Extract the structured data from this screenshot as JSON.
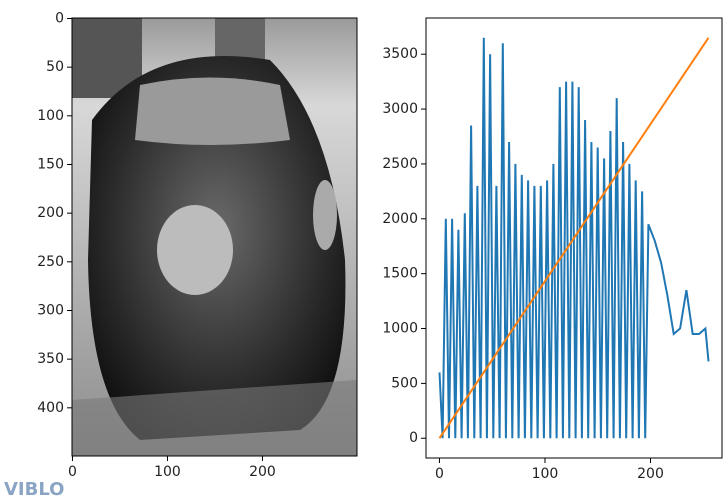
{
  "watermark": "VIBLO",
  "chart_data": [
    {
      "type": "image",
      "xlim": [
        -0.5,
        299.5
      ],
      "ylim": [
        449.5,
        -0.5
      ],
      "xticks": [
        0,
        100,
        200
      ],
      "yticks": [
        0,
        50,
        100,
        150,
        200,
        250,
        300,
        350,
        400
      ]
    },
    {
      "type": "line",
      "xlim": [
        -12.75,
        267.75
      ],
      "ylim": [
        -180,
        3830
      ],
      "xticks": [
        0,
        100,
        200
      ],
      "yticks": [
        0,
        500,
        1000,
        1500,
        2000,
        2500,
        3000,
        3500
      ],
      "series": [
        {
          "color": "#1f77b4",
          "x": [
            0,
            3,
            6,
            9,
            12,
            15,
            18,
            21,
            24,
            27,
            30,
            33,
            36,
            39,
            42,
            45,
            48,
            51,
            54,
            57,
            60,
            63,
            66,
            69,
            72,
            75,
            78,
            81,
            84,
            87,
            90,
            93,
            96,
            99,
            102,
            105,
            108,
            111,
            114,
            117,
            120,
            123,
            126,
            129,
            132,
            135,
            138,
            141,
            144,
            147,
            150,
            153,
            156,
            159,
            162,
            165,
            168,
            171,
            174,
            177,
            180,
            183,
            186,
            189,
            192,
            195,
            198,
            204,
            210,
            216,
            222,
            228,
            234,
            240,
            246,
            252,
            255
          ],
          "values": [
            600,
            0,
            2000,
            0,
            2000,
            0,
            1900,
            0,
            2050,
            0,
            2850,
            0,
            2300,
            0,
            3650,
            0,
            3500,
            0,
            2300,
            0,
            3600,
            0,
            2700,
            0,
            2500,
            0,
            2400,
            0,
            2350,
            0,
            2300,
            0,
            2300,
            0,
            2350,
            0,
            2500,
            0,
            3200,
            0,
            3250,
            0,
            3250,
            0,
            3200,
            0,
            2900,
            0,
            2700,
            0,
            2650,
            0,
            2550,
            0,
            2800,
            0,
            3100,
            0,
            2700,
            0,
            2500,
            0,
            2350,
            0,
            2250,
            0,
            1950,
            1800,
            1600,
            1300,
            950,
            1000,
            1350,
            950,
            950,
            1000,
            700
          ]
        },
        {
          "color": "#ff7f0e",
          "x": [
            0,
            255
          ],
          "values": [
            0,
            3650
          ]
        }
      ]
    }
  ]
}
